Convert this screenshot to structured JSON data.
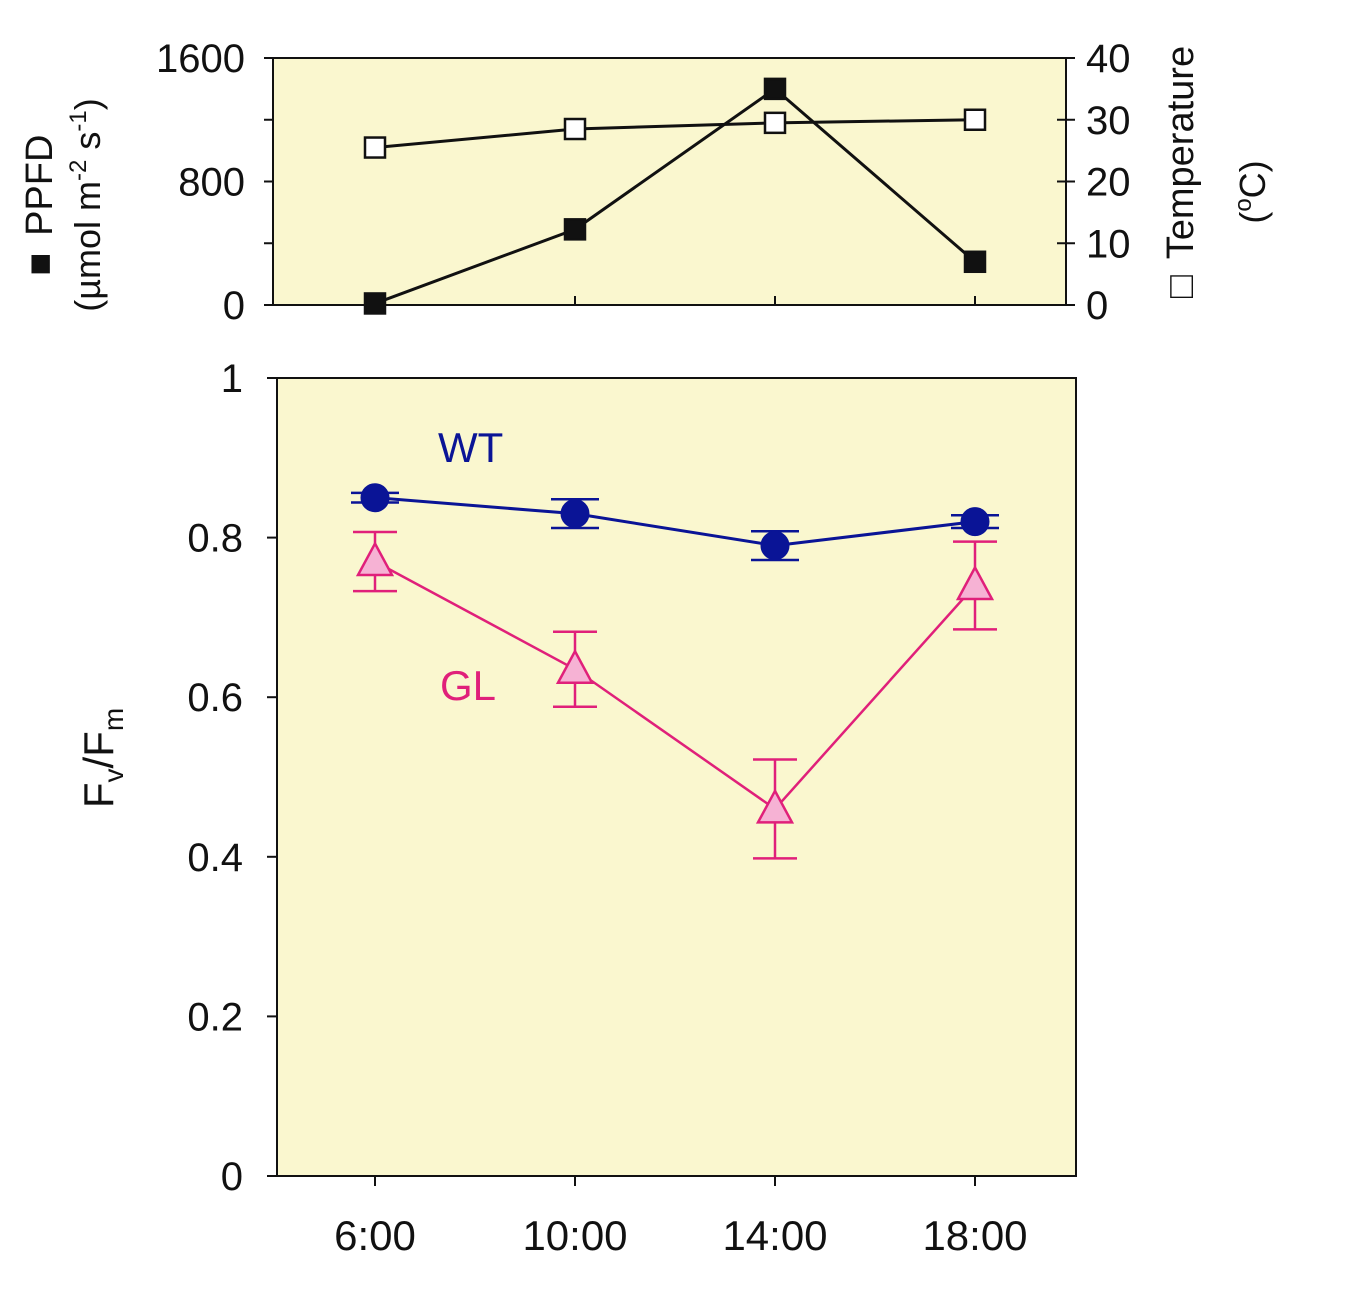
{
  "colors": {
    "panel_bg": "#faf7cf",
    "axis": "#111111",
    "wt": "#0a1496",
    "gl_line": "#e0207a",
    "gl_fill": "#f6b2d4"
  },
  "chart_data": [
    {
      "type": "line",
      "panel": "top",
      "categories": [
        "6:00",
        "10:00",
        "14:00",
        "18:00"
      ],
      "left_axis": {
        "label_parts": [
          "PPFD",
          "(µmol m",
          "-2",
          " s",
          "-1",
          ")"
        ],
        "legend_marker": "■",
        "ylim": [
          0,
          1600
        ],
        "ticks": [
          "0",
          "800",
          "1600"
        ],
        "minor_ticks": [
          400,
          1200
        ]
      },
      "right_axis": {
        "label_parts": [
          "Temperature",
          "(",
          "o",
          "C)"
        ],
        "legend_marker": "□",
        "ylim": [
          0,
          40
        ],
        "ticks": [
          "0",
          "10",
          "20",
          "30",
          "40"
        ]
      },
      "series": [
        {
          "name": "PPFD",
          "axis": "left",
          "marker": "filled-square",
          "values": [
            10,
            490,
            1400,
            280
          ]
        },
        {
          "name": "Temperature",
          "axis": "right",
          "marker": "open-square",
          "values": [
            25.5,
            28.5,
            29.5,
            30
          ]
        }
      ]
    },
    {
      "type": "line",
      "panel": "bottom",
      "categories": [
        "6:00",
        "10:00",
        "14:00",
        "18:00"
      ],
      "ylabel_parts": [
        "F",
        "v",
        "/F",
        "m"
      ],
      "ylim": [
        0,
        1
      ],
      "yticks": [
        "0",
        "0.2",
        "0.4",
        "0.6",
        "0.8",
        "1"
      ],
      "series": [
        {
          "name": "WT",
          "label": "WT",
          "marker": "filled-circle",
          "values": [
            0.85,
            0.83,
            0.79,
            0.82
          ],
          "errors": [
            0.006,
            0.018,
            0.018,
            0.008
          ]
        },
        {
          "name": "GL",
          "label": "GL",
          "marker": "open-triangle",
          "values": [
            0.77,
            0.635,
            0.46,
            0.74
          ],
          "errors": [
            0.037,
            0.047,
            0.062,
            0.055
          ]
        }
      ]
    }
  ]
}
